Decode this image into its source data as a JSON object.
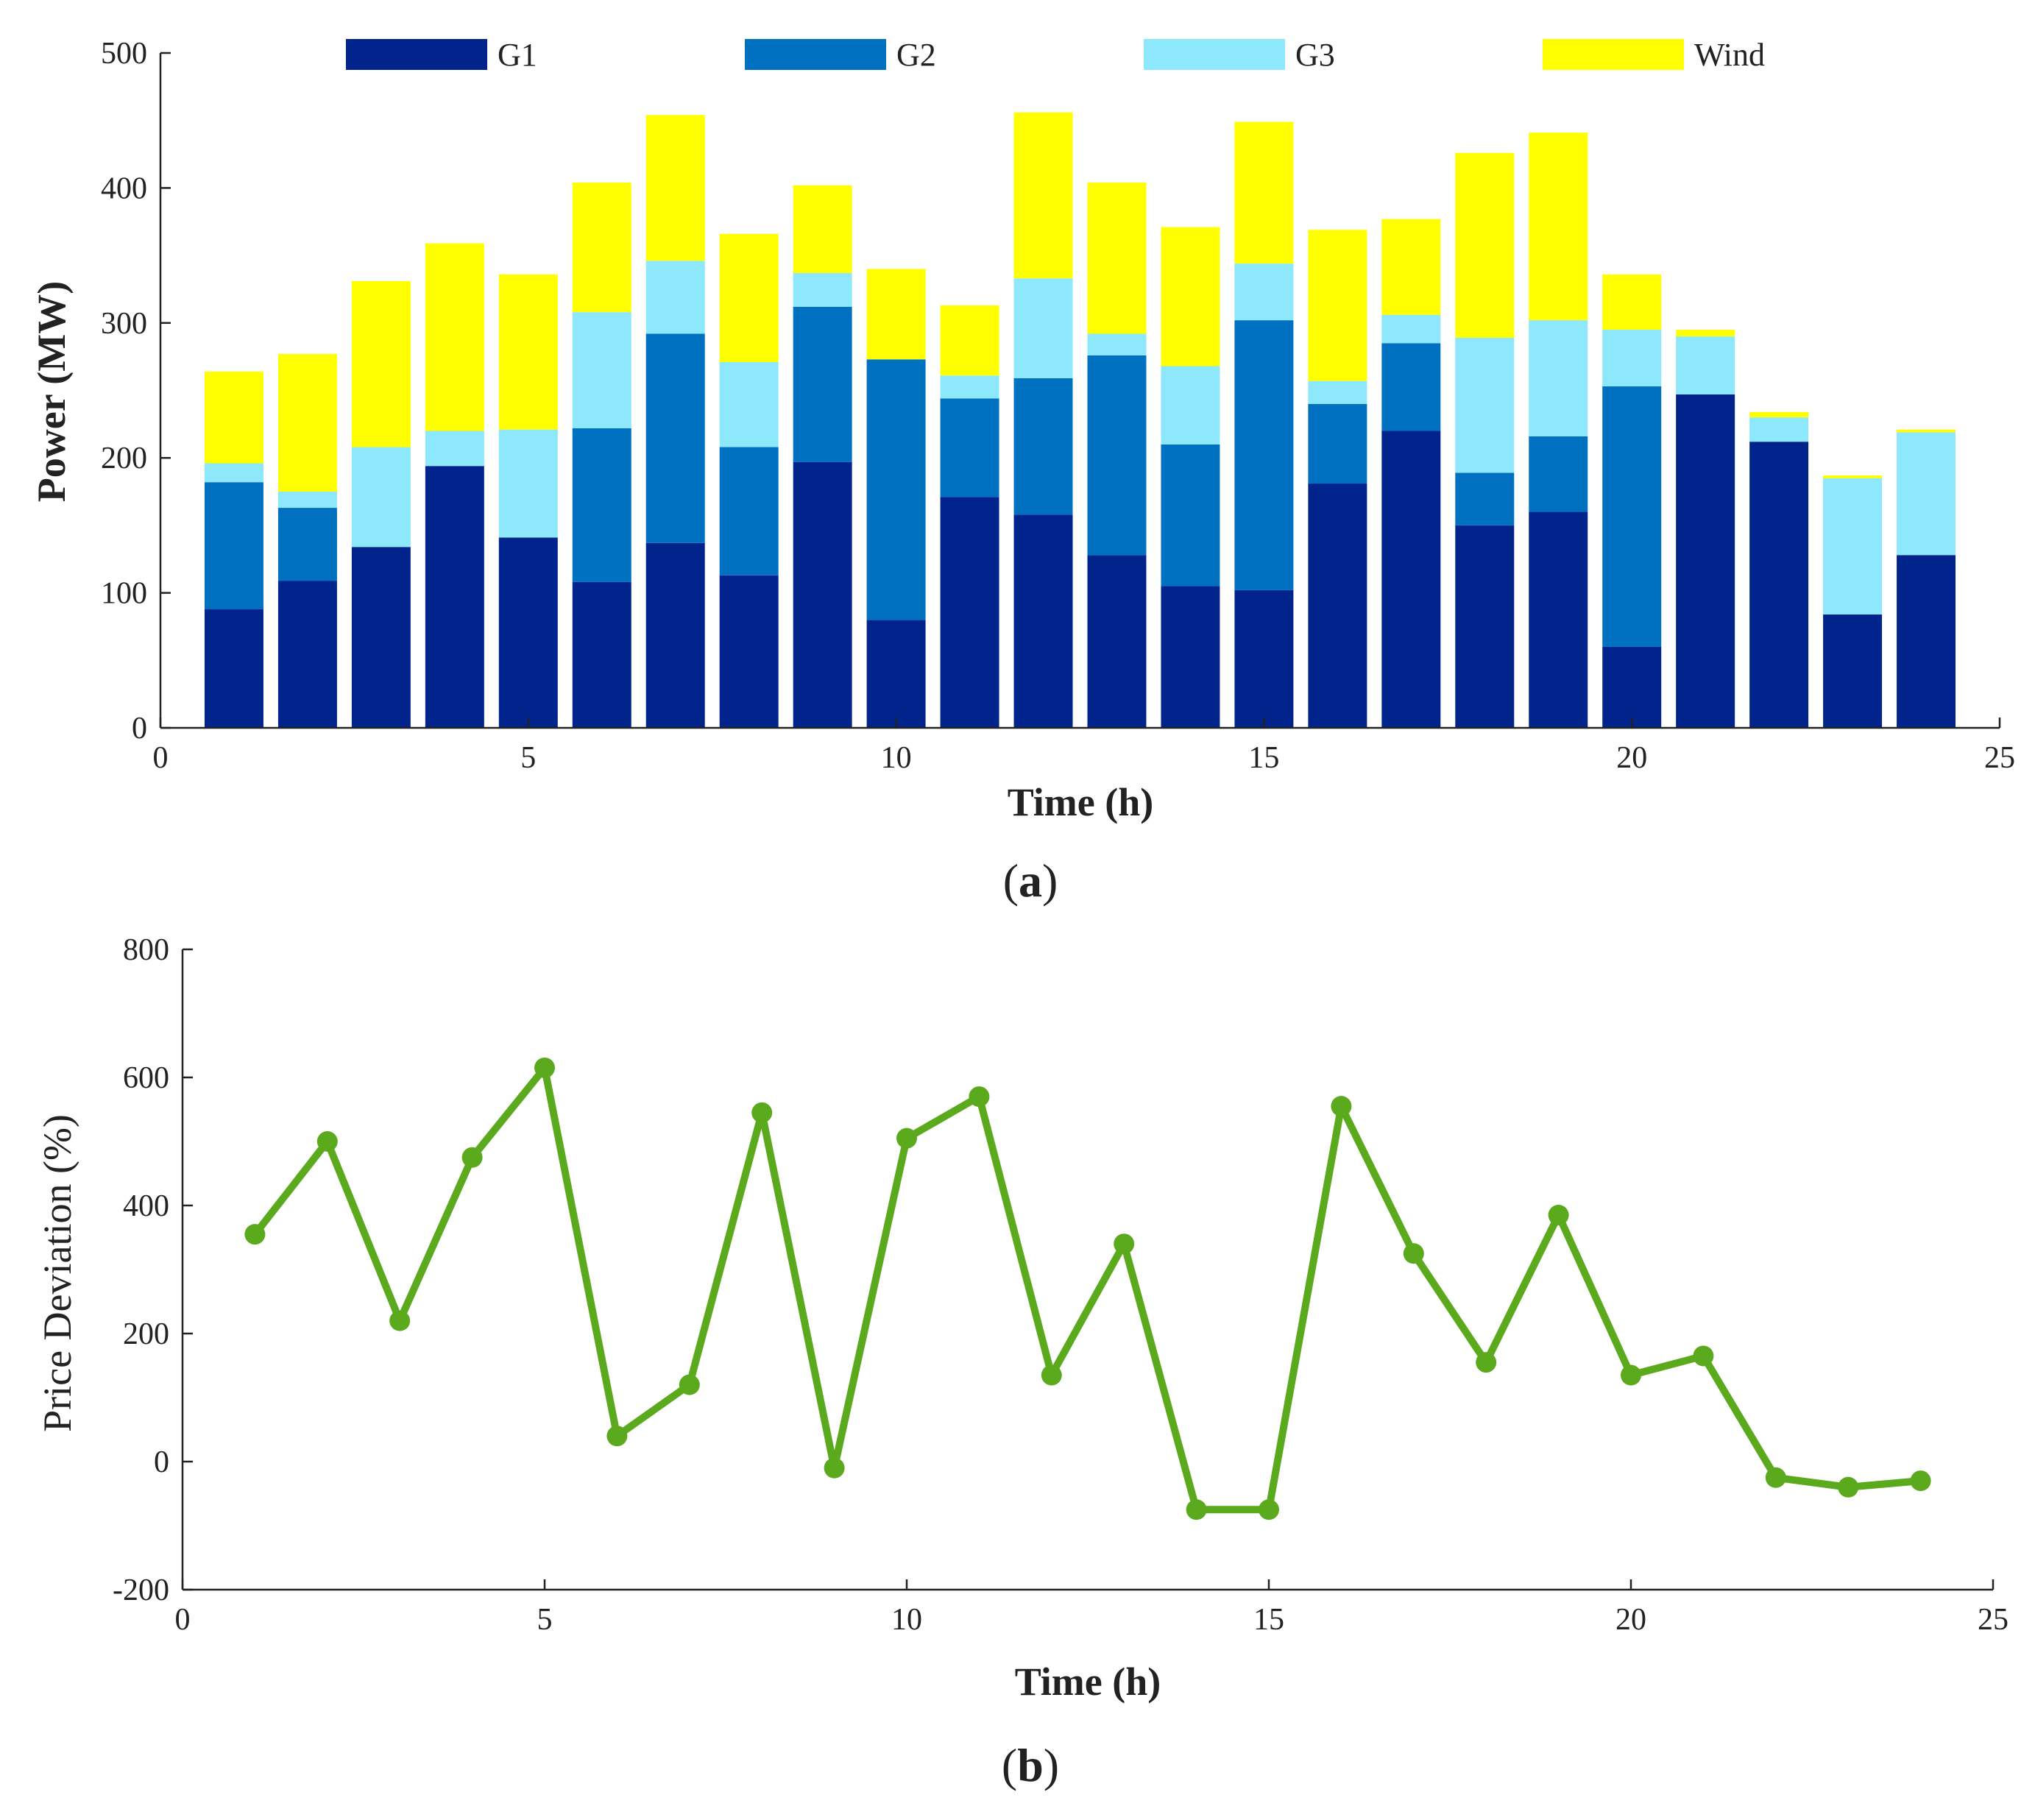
{
  "chart_data": [
    {
      "type": "bar",
      "stacked": true,
      "panel_label_prefix": "(",
      "panel_label_letter": "a",
      "panel_label_suffix": ")",
      "xlabel": "Time (h)",
      "ylabel": "Power (MW)",
      "xlim": [
        0,
        25
      ],
      "ylim": [
        0,
        500
      ],
      "xticks": [
        0,
        5,
        10,
        15,
        20,
        25
      ],
      "yticks": [
        0,
        100,
        200,
        300,
        400,
        500
      ],
      "grid": false,
      "legend_position": "top",
      "x": [
        1,
        2,
        3,
        4,
        5,
        6,
        7,
        8,
        9,
        10,
        11,
        12,
        13,
        14,
        15,
        16,
        17,
        18,
        19,
        20,
        21,
        22,
        23,
        24
      ],
      "series": [
        {
          "name": "G1",
          "color": "#00248C",
          "values": [
            88,
            109,
            134,
            194,
            141,
            108,
            137,
            113,
            197,
            80,
            171,
            158,
            128,
            105,
            102,
            181,
            220,
            150,
            160,
            60,
            247,
            212,
            84,
            128
          ]
        },
        {
          "name": "G2",
          "color": "#0070C0",
          "values": [
            94,
            54,
            0,
            0,
            0,
            114,
            155,
            95,
            115,
            193,
            73,
            101,
            148,
            105,
            200,
            59,
            65,
            39,
            56,
            193,
            0,
            0,
            0,
            0
          ]
        },
        {
          "name": "G3",
          "color": "#8DE8FB",
          "values": [
            14,
            12,
            74,
            26,
            80,
            86,
            54,
            63,
            25,
            0,
            17,
            74,
            16,
            58,
            42,
            17,
            21,
            100,
            86,
            42,
            43,
            18,
            101,
            91
          ]
        },
        {
          "name": "Wind",
          "color": "#FFFF00",
          "values": [
            68,
            102,
            123,
            139,
            115,
            96,
            108,
            95,
            65,
            67,
            52,
            123,
            112,
            103,
            105,
            112,
            71,
            137,
            139,
            41,
            5,
            4,
            2,
            2
          ]
        }
      ]
    },
    {
      "type": "line",
      "panel_label_prefix": "(",
      "panel_label_letter": "b",
      "panel_label_suffix": ")",
      "xlabel": "Time (h)",
      "ylabel": "Price Deviation (%)",
      "xlim": [
        0,
        25
      ],
      "ylim": [
        -200,
        800
      ],
      "xticks": [
        0,
        5,
        10,
        15,
        20,
        25
      ],
      "yticks": [
        -200,
        0,
        200,
        400,
        600,
        800
      ],
      "grid": false,
      "series": [
        {
          "name": "Price Deviation",
          "color": "#5BAA1E",
          "x": [
            1,
            2,
            3,
            4,
            5,
            6,
            7,
            8,
            9,
            10,
            11,
            12,
            13,
            14,
            15,
            16,
            17,
            18,
            19,
            20,
            21,
            22,
            23,
            24
          ],
          "values": [
            355,
            500,
            220,
            475,
            615,
            40,
            120,
            545,
            -10,
            505,
            570,
            135,
            340,
            -75,
            -75,
            555,
            325,
            155,
            385,
            135,
            165,
            -25,
            -40,
            -30
          ]
        }
      ]
    }
  ]
}
